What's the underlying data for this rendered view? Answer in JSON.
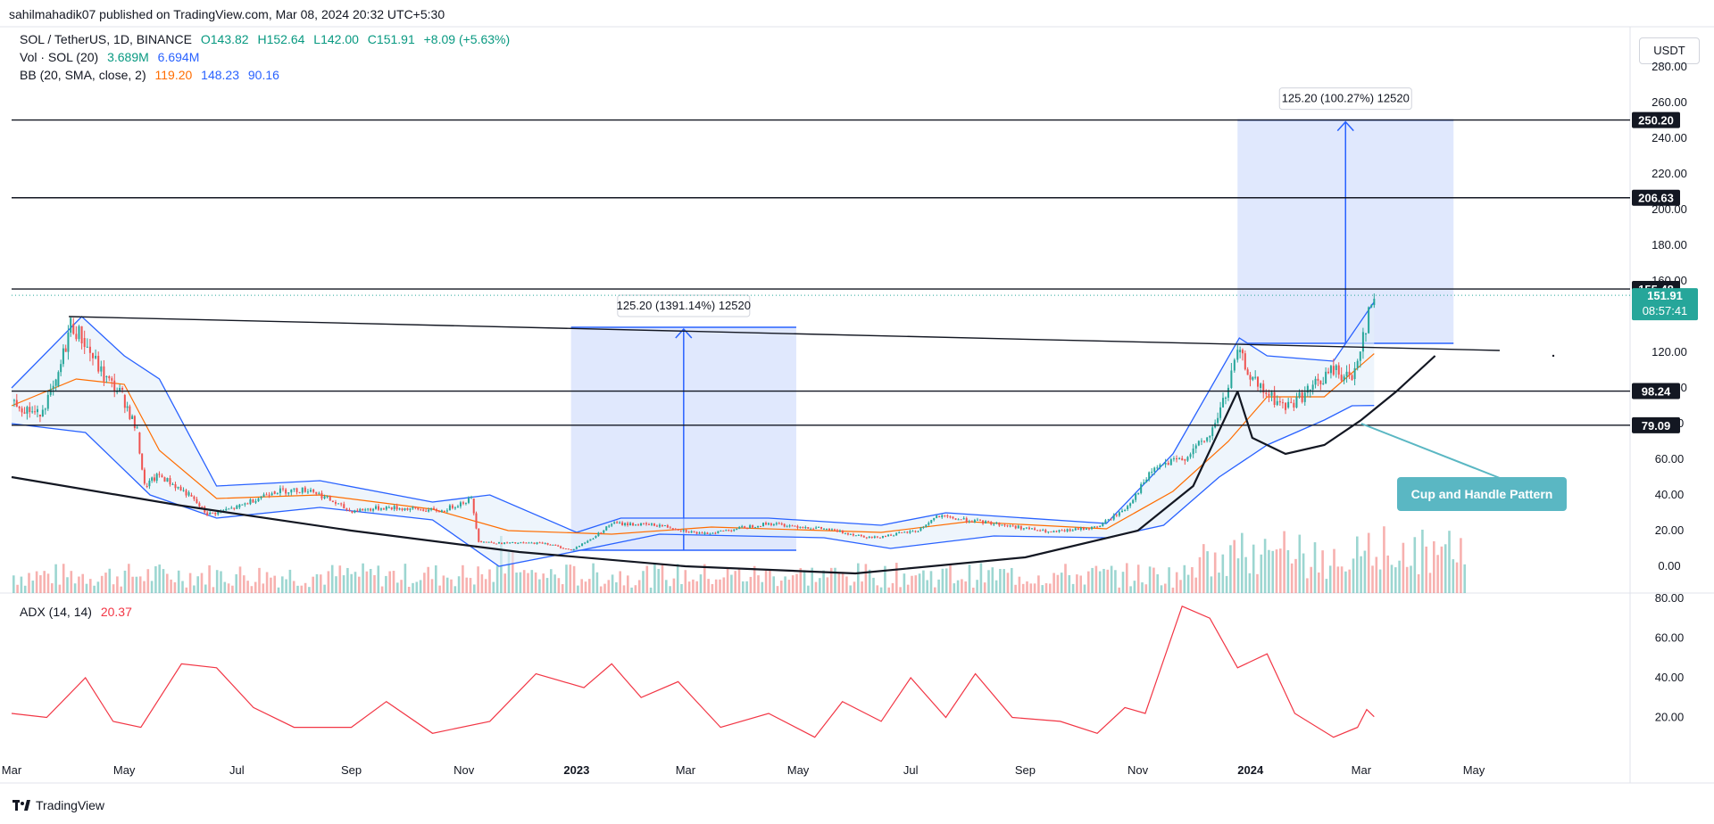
{
  "header": {
    "published": "sahilmahadik07 published on TradingView.com, Mar 08, 2024 20:32 UTC+5:30"
  },
  "legend": {
    "main": {
      "label": "SOL / TetherUS, 1D, BINANCE",
      "o": "O143.82",
      "h": "H152.64",
      "l": "L142.00",
      "c": "C151.91",
      "chg": "+8.09 (+5.63%)"
    },
    "vol": {
      "label": "Vol · SOL (20)",
      "v1": "3.689M",
      "v2": "6.694M"
    },
    "bb": {
      "label": "BB (20, SMA, close, 2)",
      "v1": "119.20",
      "v2": "148.23",
      "v3": "90.16"
    },
    "adx": {
      "label": "ADX (14, 14)",
      "v": "20.37"
    }
  },
  "currency_button": "USDT",
  "branding": "TradingView",
  "colors": {
    "up": "#26a69a",
    "down": "#ef5350",
    "bb_basis": "#ff6d00",
    "bb_band": "#2962ff",
    "band_fill": "#e3eefa",
    "measure_fill": "#dbe4fd",
    "annotation_teal": "#5ab7c3",
    "adx": "#f23645"
  },
  "chart_data": [
    {
      "type": "line",
      "title": "SOL / TetherUS, 1D, BINANCE",
      "x_ticks": [
        "Mar",
        "May",
        "Jul",
        "Sep",
        "Nov",
        "2023",
        "Mar",
        "May",
        "Jul",
        "Sep",
        "Nov",
        "2024",
        "Mar",
        "May"
      ],
      "y_ticks": [
        "0.00",
        "20.00",
        "40.00",
        "60.00",
        "80.00",
        "100.00",
        "120.00",
        "140.00",
        "160.00",
        "180.00",
        "200.00",
        "220.00",
        "240.00",
        "260.00",
        "280.00"
      ],
      "ylim": [
        -5,
        285
      ],
      "price_series": [
        {
          "x": "2022-03-01",
          "y": 93
        },
        {
          "x": "2022-03-15",
          "y": 85
        },
        {
          "x": "2022-03-25",
          "y": 101
        },
        {
          "x": "2022-04-02",
          "y": 136
        },
        {
          "x": "2022-04-08",
          "y": 128
        },
        {
          "x": "2022-04-20",
          "y": 106
        },
        {
          "x": "2022-04-30",
          "y": 96
        },
        {
          "x": "2022-05-08",
          "y": 75
        },
        {
          "x": "2022-05-12",
          "y": 45
        },
        {
          "x": "2022-05-20",
          "y": 51
        },
        {
          "x": "2022-06-05",
          "y": 40
        },
        {
          "x": "2022-06-15",
          "y": 29
        },
        {
          "x": "2022-07-01",
          "y": 33
        },
        {
          "x": "2022-07-20",
          "y": 42
        },
        {
          "x": "2022-08-10",
          "y": 43
        },
        {
          "x": "2022-08-31",
          "y": 31
        },
        {
          "x": "2022-09-20",
          "y": 33
        },
        {
          "x": "2022-10-20",
          "y": 31
        },
        {
          "x": "2022-11-05",
          "y": 38
        },
        {
          "x": "2022-11-09",
          "y": 14
        },
        {
          "x": "2022-11-20",
          "y": 13
        },
        {
          "x": "2022-12-15",
          "y": 13
        },
        {
          "x": "2022-12-29",
          "y": 9
        },
        {
          "x": "2023-01-10",
          "y": 16
        },
        {
          "x": "2023-01-20",
          "y": 24
        },
        {
          "x": "2023-02-15",
          "y": 23
        },
        {
          "x": "2023-03-10",
          "y": 18
        },
        {
          "x": "2023-04-15",
          "y": 24
        },
        {
          "x": "2023-05-15",
          "y": 21
        },
        {
          "x": "2023-06-10",
          "y": 16
        },
        {
          "x": "2023-07-05",
          "y": 20
        },
        {
          "x": "2023-07-15",
          "y": 28
        },
        {
          "x": "2023-08-15",
          "y": 24
        },
        {
          "x": "2023-09-15",
          "y": 19
        },
        {
          "x": "2023-10-10",
          "y": 22
        },
        {
          "x": "2023-10-25",
          "y": 32
        },
        {
          "x": "2023-11-10",
          "y": 55
        },
        {
          "x": "2023-11-25",
          "y": 60
        },
        {
          "x": "2023-12-10",
          "y": 73
        },
        {
          "x": "2023-12-20",
          "y": 100
        },
        {
          "x": "2023-12-25",
          "y": 120
        },
        {
          "x": "2024-01-05",
          "y": 100
        },
        {
          "x": "2024-01-20",
          "y": 89
        },
        {
          "x": "2024-02-01",
          "y": 98
        },
        {
          "x": "2024-02-15",
          "y": 110
        },
        {
          "x": "2024-02-25",
          "y": 105
        },
        {
          "x": "2024-03-02",
          "y": 130
        },
        {
          "x": "2024-03-08",
          "y": 151.91
        }
      ],
      "bb_basis": [
        {
          "x": "2022-03-01",
          "y": 90
        },
        {
          "x": "2022-04-05",
          "y": 105
        },
        {
          "x": "2022-05-01",
          "y": 102
        },
        {
          "x": "2022-05-20",
          "y": 65
        },
        {
          "x": "2022-06-20",
          "y": 38
        },
        {
          "x": "2022-08-15",
          "y": 40
        },
        {
          "x": "2022-10-15",
          "y": 32
        },
        {
          "x": "2022-11-25",
          "y": 20
        },
        {
          "x": "2023-01-20",
          "y": 18
        },
        {
          "x": "2023-03-15",
          "y": 22
        },
        {
          "x": "2023-06-15",
          "y": 19
        },
        {
          "x": "2023-08-01",
          "y": 25
        },
        {
          "x": "2023-10-15",
          "y": 21
        },
        {
          "x": "2023-11-20",
          "y": 42
        },
        {
          "x": "2023-12-20",
          "y": 70
        },
        {
          "x": "2024-01-10",
          "y": 95
        },
        {
          "x": "2024-02-10",
          "y": 95
        },
        {
          "x": "2024-03-08",
          "y": 119.2
        }
      ],
      "bb_upper": [
        {
          "x": "2022-03-01",
          "y": 100
        },
        {
          "x": "2022-04-08",
          "y": 140
        },
        {
          "x": "2022-05-01",
          "y": 118
        },
        {
          "x": "2022-05-20",
          "y": 105
        },
        {
          "x": "2022-06-20",
          "y": 45
        },
        {
          "x": "2022-08-15",
          "y": 48
        },
        {
          "x": "2022-10-15",
          "y": 36
        },
        {
          "x": "2022-11-15",
          "y": 40
        },
        {
          "x": "2023-01-01",
          "y": 19
        },
        {
          "x": "2023-01-25",
          "y": 27
        },
        {
          "x": "2023-04-15",
          "y": 27
        },
        {
          "x": "2023-06-15",
          "y": 23
        },
        {
          "x": "2023-07-20",
          "y": 30
        },
        {
          "x": "2023-10-15",
          "y": 24
        },
        {
          "x": "2023-11-20",
          "y": 63
        },
        {
          "x": "2023-12-26",
          "y": 128
        },
        {
          "x": "2024-01-10",
          "y": 118
        },
        {
          "x": "2024-02-15",
          "y": 115
        },
        {
          "x": "2024-03-08",
          "y": 148.23
        }
      ],
      "bb_lower": [
        {
          "x": "2022-03-01",
          "y": 80
        },
        {
          "x": "2022-04-10",
          "y": 75
        },
        {
          "x": "2022-05-15",
          "y": 40
        },
        {
          "x": "2022-06-20",
          "y": 27
        },
        {
          "x": "2022-08-15",
          "y": 33
        },
        {
          "x": "2022-10-15",
          "y": 26
        },
        {
          "x": "2022-11-20",
          "y": 0
        },
        {
          "x": "2022-12-20",
          "y": 6
        },
        {
          "x": "2023-02-15",
          "y": 18
        },
        {
          "x": "2023-05-15",
          "y": 16
        },
        {
          "x": "2023-06-20",
          "y": 10
        },
        {
          "x": "2023-08-15",
          "y": 17
        },
        {
          "x": "2023-10-15",
          "y": 16
        },
        {
          "x": "2023-11-15",
          "y": 23
        },
        {
          "x": "2023-12-15",
          "y": 50
        },
        {
          "x": "2024-01-10",
          "y": 68
        },
        {
          "x": "2024-02-10",
          "y": 82
        },
        {
          "x": "2024-02-25",
          "y": 90
        },
        {
          "x": "2024-03-08",
          "y": 90.16
        }
      ],
      "levels": [
        {
          "value": 250.2,
          "label": "250.20"
        },
        {
          "value": 206.63,
          "label": "206.63"
        },
        {
          "value": 155.48,
          "label": "155.48"
        },
        {
          "value": 98.24,
          "label": "98.24"
        },
        {
          "value": 79.09,
          "label": "79.09"
        }
      ],
      "current_price": {
        "value": 151.91,
        "label": "151.91",
        "countdown": "08:57:41"
      },
      "measurements": [
        {
          "label": "125.20 (1391.14%) 12520",
          "x_start": "2022-12-29",
          "x_end": "2023-04-30",
          "y_low": 9,
          "y_high": 134
        },
        {
          "label": "125.20 (100.27%) 12520",
          "x_start": "2023-12-25",
          "x_end": "2024-04-20",
          "y_low": 125,
          "y_high": 250.2
        }
      ],
      "trendline": [
        {
          "x": "2022-04-01",
          "y": 140
        },
        {
          "x": "2024-05-15",
          "y": 121
        }
      ],
      "support_curve": [
        {
          "x": "2022-03-01",
          "y": 50
        },
        {
          "x": "2022-06-01",
          "y": 34
        },
        {
          "x": "2022-09-01",
          "y": 20
        },
        {
          "x": "2022-12-01",
          "y": 8
        },
        {
          "x": "2023-03-01",
          "y": 0
        },
        {
          "x": "2023-06-01",
          "y": -4
        },
        {
          "x": "2023-09-01",
          "y": 5
        },
        {
          "x": "2023-11-01",
          "y": 20
        },
        {
          "x": "2023-12-01",
          "y": 45
        },
        {
          "x": "2023-12-25",
          "y": 98
        }
      ],
      "cup_handle_curve": [
        {
          "x": "2023-12-25",
          "y": 98
        },
        {
          "x": "2024-01-02",
          "y": 72
        },
        {
          "x": "2024-01-20",
          "y": 63
        },
        {
          "x": "2024-02-10",
          "y": 68
        },
        {
          "x": "2024-03-01",
          "y": 82
        },
        {
          "x": "2024-03-20",
          "y": 98
        },
        {
          "x": "2024-04-10",
          "y": 118
        }
      ],
      "annotation": {
        "text": "Cup and Handle Pattern",
        "x": "2024-03-01",
        "y": 80
      }
    },
    {
      "type": "line",
      "title": "ADX (14, 14)",
      "y_ticks": [
        "20.00",
        "40.00",
        "60.00",
        "80.00"
      ],
      "ylim": [
        0,
        85
      ],
      "series": [
        {
          "x": "2022-03-01",
          "y": 22
        },
        {
          "x": "2022-03-20",
          "y": 20
        },
        {
          "x": "2022-04-10",
          "y": 40
        },
        {
          "x": "2022-04-25",
          "y": 18
        },
        {
          "x": "2022-05-10",
          "y": 15
        },
        {
          "x": "2022-06-01",
          "y": 47
        },
        {
          "x": "2022-06-20",
          "y": 45
        },
        {
          "x": "2022-07-10",
          "y": 25
        },
        {
          "x": "2022-08-01",
          "y": 15
        },
        {
          "x": "2022-09-01",
          "y": 15
        },
        {
          "x": "2022-09-20",
          "y": 28
        },
        {
          "x": "2022-10-15",
          "y": 12
        },
        {
          "x": "2022-11-15",
          "y": 18
        },
        {
          "x": "2022-12-10",
          "y": 42
        },
        {
          "x": "2023-01-05",
          "y": 35
        },
        {
          "x": "2023-01-20",
          "y": 47
        },
        {
          "x": "2023-02-05",
          "y": 30
        },
        {
          "x": "2023-02-25",
          "y": 38
        },
        {
          "x": "2023-03-20",
          "y": 15
        },
        {
          "x": "2023-04-15",
          "y": 22
        },
        {
          "x": "2023-05-10",
          "y": 10
        },
        {
          "x": "2023-05-25",
          "y": 28
        },
        {
          "x": "2023-06-15",
          "y": 18
        },
        {
          "x": "2023-07-01",
          "y": 40
        },
        {
          "x": "2023-07-20",
          "y": 20
        },
        {
          "x": "2023-08-05",
          "y": 42
        },
        {
          "x": "2023-08-25",
          "y": 20
        },
        {
          "x": "2023-09-20",
          "y": 18
        },
        {
          "x": "2023-10-10",
          "y": 12
        },
        {
          "x": "2023-10-25",
          "y": 25
        },
        {
          "x": "2023-11-05",
          "y": 22
        },
        {
          "x": "2023-11-25",
          "y": 76
        },
        {
          "x": "2023-12-10",
          "y": 70
        },
        {
          "x": "2023-12-25",
          "y": 45
        },
        {
          "x": "2024-01-10",
          "y": 52
        },
        {
          "x": "2024-01-25",
          "y": 22
        },
        {
          "x": "2024-02-15",
          "y": 10
        },
        {
          "x": "2024-02-28",
          "y": 15
        },
        {
          "x": "2024-03-04",
          "y": 24
        },
        {
          "x": "2024-03-08",
          "y": 20.37
        }
      ]
    }
  ]
}
